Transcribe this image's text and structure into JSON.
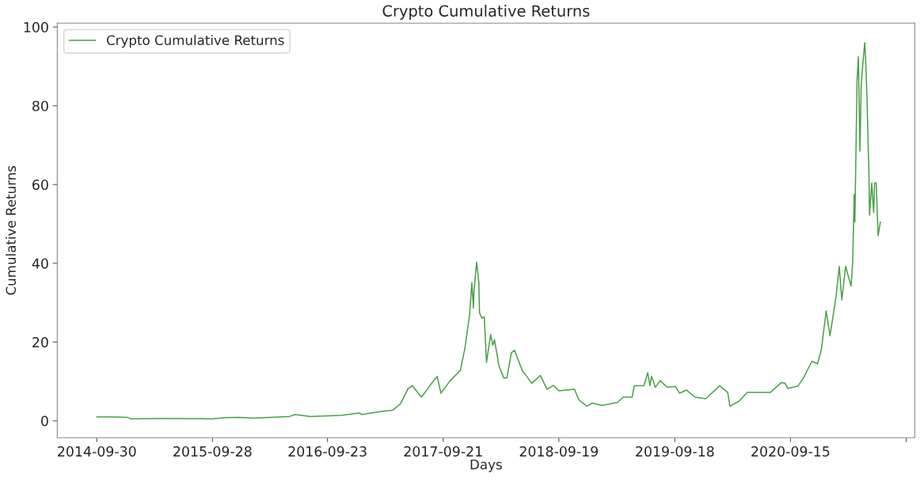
{
  "chart_data": {
    "type": "line",
    "title": "Crypto Cumulative Returns",
    "xlabel": "Days",
    "ylabel": "Cumulative Returns",
    "legend": "top left",
    "grid": false,
    "xlim": [
      "2014-05-29",
      "2021-10-10"
    ],
    "xticks": [
      {
        "value": "2014-09-30",
        "label": "2014-09-30"
      },
      {
        "value": "2015-09-28",
        "label": "2015-09-28"
      },
      {
        "value": "2016-09-23",
        "label": "2016-09-23"
      },
      {
        "value": "2017-09-21",
        "label": "2017-09-21"
      },
      {
        "value": "2018-09-19",
        "label": "2018-09-19"
      },
      {
        "value": "2019-09-18",
        "label": "2019-09-18"
      },
      {
        "value": "2020-09-15",
        "label": "2020-09-15"
      },
      {
        "value": "2021-09-13",
        "label": null
      }
    ],
    "ylim": [
      -4.3,
      101
    ],
    "yticks": [
      0,
      20,
      40,
      60,
      80,
      100
    ],
    "series": [
      {
        "name": "Crypto Cumulative Returns",
        "color": "#49a049",
        "x": [
          "2014-09-30",
          "2014-11-15",
          "2015-01-03",
          "2015-01-15",
          "2015-04-18",
          "2015-09-28",
          "2015-11-04",
          "2015-12-17",
          "2016-02-04",
          "2016-05-27",
          "2016-06-13",
          "2016-07-31",
          "2016-11-06",
          "2017-01-01",
          "2017-01-08",
          "2017-03-03",
          "2017-04-16",
          "2017-05-10",
          "2017-06-03",
          "2017-06-16",
          "2017-07-15",
          "2017-08-13",
          "2017-09-02",
          "2017-09-14",
          "2017-10-13",
          "2017-11-14",
          "2017-11-28",
          "2017-12-13",
          "2017-12-20",
          "2017-12-25",
          "2017-12-27",
          "2018-01-04",
          "2018-01-11",
          "2018-01-13",
          "2018-01-21",
          "2018-01-28",
          "2018-02-04",
          "2018-02-17",
          "2018-02-24",
          "2018-03-01",
          "2018-03-15",
          "2018-03-30",
          "2018-04-09",
          "2018-04-23",
          "2018-05-03",
          "2018-05-27",
          "2018-06-14",
          "2018-06-26",
          "2018-07-23",
          "2018-08-13",
          "2018-09-02",
          "2018-09-19",
          "2018-11-07",
          "2018-11-21",
          "2018-12-16",
          "2019-01-02",
          "2019-02-02",
          "2019-03-23",
          "2019-04-09",
          "2019-05-07",
          "2019-05-14",
          "2019-06-13",
          "2019-06-25",
          "2019-07-02",
          "2019-07-07",
          "2019-07-19",
          "2019-08-03",
          "2019-08-25",
          "2019-09-20",
          "2019-10-03",
          "2019-10-25",
          "2019-11-20",
          "2019-12-24",
          "2020-02-06",
          "2020-03-02",
          "2020-03-09",
          "2020-04-07",
          "2020-05-02",
          "2020-07-14",
          "2020-08-17",
          "2020-08-29",
          "2020-09-07",
          "2020-10-08",
          "2020-10-26",
          "2020-11-21",
          "2020-12-09",
          "2020-12-21",
          "2021-01-05",
          "2021-01-17",
          "2021-02-05",
          "2021-02-15",
          "2021-02-23",
          "2021-03-07",
          "2021-03-24",
          "2021-03-29",
          "2021-04-03",
          "2021-04-05",
          "2021-04-12",
          "2021-04-16",
          "2021-04-21",
          "2021-04-25",
          "2021-05-02",
          "2021-05-06",
          "2021-05-09",
          "2021-05-13",
          "2021-05-19",
          "2021-05-21",
          "2021-05-28",
          "2021-06-03",
          "2021-06-06",
          "2021-06-11",
          "2021-06-17",
          "2021-06-24"
        ],
        "values": [
          1.0,
          1.0,
          0.9,
          0.5,
          0.6,
          0.5,
          0.8,
          0.9,
          0.7,
          1.1,
          1.6,
          1.1,
          1.4,
          2.0,
          1.6,
          2.3,
          2.7,
          4.3,
          8.2,
          8.9,
          6.0,
          9.2,
          11.3,
          7.0,
          10.2,
          12.8,
          18.3,
          27.0,
          35.1,
          28.6,
          33.2,
          40.3,
          35.1,
          27.4,
          26.0,
          26.4,
          14.8,
          21.9,
          19.2,
          20.6,
          14.0,
          10.9,
          10.9,
          17.3,
          17.9,
          12.8,
          10.9,
          9.5,
          11.5,
          8.0,
          9.0,
          7.6,
          8.0,
          5.3,
          3.7,
          4.5,
          3.9,
          4.7,
          6.0,
          6.0,
          8.9,
          8.9,
          12.2,
          8.9,
          11.3,
          8.5,
          10.2,
          8.5,
          8.7,
          7.0,
          7.8,
          6.0,
          5.6,
          8.9,
          7.2,
          3.7,
          5.0,
          7.2,
          7.2,
          9.7,
          9.5,
          8.2,
          8.8,
          10.9,
          15.1,
          14.5,
          18.1,
          27.9,
          21.6,
          31.5,
          39.2,
          30.7,
          39.2,
          34.2,
          39.9,
          57.5,
          50.5,
          86.5,
          92.5,
          68.5,
          85.4,
          92.5,
          96.0,
          91.5,
          82.2,
          63.2,
          52.2,
          60.4,
          52.9,
          60.4,
          60.4,
          47.0,
          50.5
        ]
      }
    ]
  }
}
